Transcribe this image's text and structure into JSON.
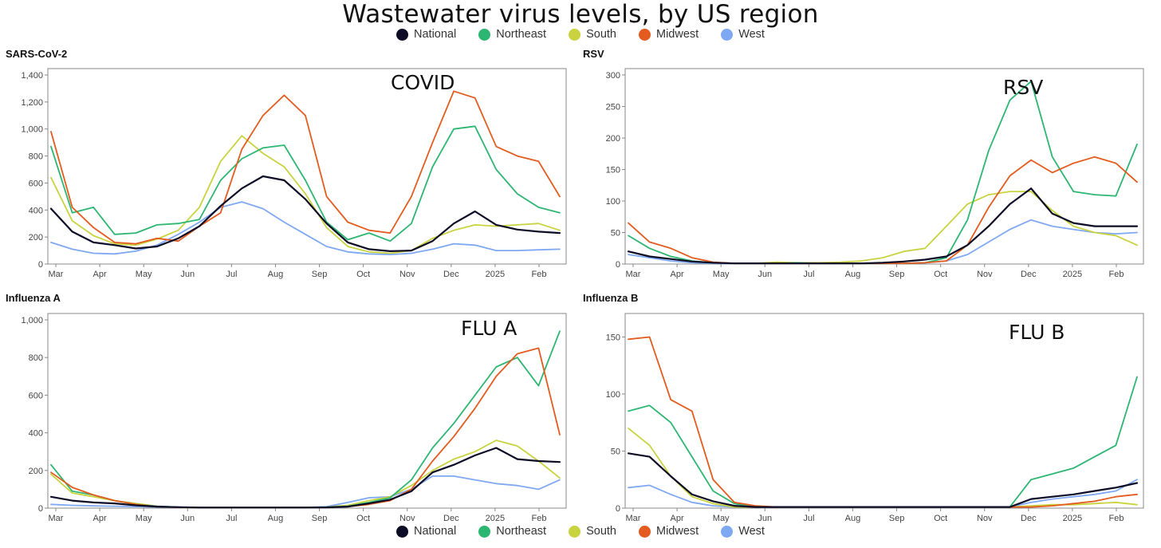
{
  "title": "Wastewater virus levels, by US region",
  "legend": [
    {
      "name": "National",
      "color": "#0d0c26"
    },
    {
      "name": "Northeast",
      "color": "#2db672"
    },
    {
      "name": "South",
      "color": "#c8d33f"
    },
    {
      "name": "Midwest",
      "color": "#e35b1e"
    },
    {
      "name": "West",
      "color": "#7fa8f2"
    }
  ],
  "chart_data": [
    {
      "type": "line",
      "title": "SARS-CoV-2",
      "annotation": "COVID",
      "x_tick_labels": [
        "Mar",
        "Apr",
        "May",
        "Jun",
        "Jul",
        "Aug",
        "Sep",
        "Oct",
        "Nov",
        "Dec",
        "2025",
        "Feb"
      ],
      "ylim": [
        0,
        1400
      ],
      "y_ticks": [
        0,
        200,
        400,
        600,
        800,
        1000,
        1200,
        1400
      ],
      "x": [
        0,
        0.5,
        1,
        1.5,
        2,
        2.5,
        3,
        3.5,
        4,
        4.5,
        5,
        5.5,
        6,
        6.5,
        7,
        7.5,
        8,
        8.5,
        9,
        9.5,
        10,
        10.5,
        11,
        11.5,
        12
      ],
      "series": [
        {
          "name": "National",
          "values": [
            410,
            240,
            160,
            140,
            115,
            130,
            190,
            280,
            430,
            560,
            650,
            620,
            480,
            300,
            160,
            110,
            95,
            100,
            170,
            300,
            390,
            290,
            255,
            240,
            230
          ]
        },
        {
          "name": "Northeast",
          "values": [
            870,
            380,
            420,
            220,
            230,
            290,
            300,
            330,
            620,
            780,
            860,
            880,
            620,
            310,
            180,
            230,
            170,
            300,
            720,
            1000,
            1020,
            700,
            520,
            420,
            380
          ]
        },
        {
          "name": "South",
          "values": [
            640,
            320,
            210,
            150,
            140,
            185,
            250,
            420,
            760,
            950,
            820,
            720,
            520,
            270,
            130,
            90,
            80,
            100,
            190,
            250,
            290,
            280,
            290,
            300,
            250
          ]
        },
        {
          "name": "Midwest",
          "values": [
            980,
            420,
            270,
            160,
            150,
            190,
            170,
            280,
            380,
            850,
            1100,
            1250,
            1100,
            500,
            310,
            250,
            230,
            500,
            900,
            1280,
            1230,
            870,
            800,
            760,
            500
          ]
        },
        {
          "name": "West",
          "values": [
            160,
            110,
            80,
            75,
            95,
            140,
            220,
            310,
            420,
            460,
            410,
            310,
            220,
            130,
            90,
            75,
            70,
            80,
            110,
            150,
            140,
            100,
            100,
            105,
            110
          ]
        }
      ]
    },
    {
      "type": "line",
      "title": "RSV",
      "annotation": "RSV",
      "x_tick_labels": [
        "Mar",
        "Apr",
        "May",
        "Jun",
        "Jul",
        "Aug",
        "Sep",
        "Oct",
        "Nov",
        "Dec",
        "2025",
        "Feb"
      ],
      "ylim": [
        0,
        300
      ],
      "y_ticks": [
        0,
        50,
        100,
        150,
        200,
        250,
        300
      ],
      "x": [
        0,
        0.5,
        1,
        1.5,
        2,
        2.5,
        3,
        3.5,
        4,
        4.5,
        5,
        5.5,
        6,
        6.5,
        7,
        7.5,
        8,
        8.5,
        9,
        9.5,
        10,
        10.5,
        11,
        11.5,
        12
      ],
      "series": [
        {
          "name": "National",
          "values": [
            20,
            12,
            8,
            4,
            2,
            1,
            1,
            1,
            1,
            1,
            1,
            1,
            2,
            4,
            7,
            12,
            30,
            60,
            95,
            120,
            80,
            65,
            60,
            60,
            60
          ]
        },
        {
          "name": "Northeast",
          "values": [
            45,
            25,
            12,
            5,
            2,
            1,
            1,
            1,
            2,
            1,
            1,
            1,
            1,
            1,
            2,
            10,
            70,
            180,
            260,
            290,
            170,
            115,
            110,
            108,
            190
          ]
        },
        {
          "name": "South",
          "values": [
            20,
            12,
            8,
            4,
            2,
            1,
            1,
            3,
            2,
            2,
            3,
            5,
            10,
            20,
            25,
            60,
            95,
            110,
            115,
            115,
            85,
            60,
            50,
            45,
            30
          ]
        },
        {
          "name": "Midwest",
          "values": [
            65,
            35,
            25,
            10,
            3,
            1,
            1,
            1,
            1,
            1,
            1,
            1,
            1,
            1,
            2,
            5,
            30,
            90,
            140,
            165,
            145,
            160,
            170,
            160,
            130
          ]
        },
        {
          "name": "West",
          "values": [
            15,
            10,
            5,
            2,
            1,
            1,
            1,
            1,
            1,
            1,
            1,
            1,
            1,
            1,
            2,
            5,
            15,
            35,
            55,
            70,
            60,
            55,
            50,
            48,
            50
          ]
        }
      ]
    },
    {
      "type": "line",
      "title": "Influenza A",
      "annotation": "FLU A",
      "x_tick_labels": [
        "Mar",
        "Apr",
        "May",
        "Jun",
        "Jul",
        "Aug",
        "Sep",
        "Oct",
        "Nov",
        "Dec",
        "2025",
        "Feb"
      ],
      "ylim": [
        0,
        1000
      ],
      "y_ticks": [
        0,
        200,
        400,
        600,
        800,
        1000
      ],
      "x": [
        0,
        0.5,
        1,
        1.5,
        2,
        2.5,
        3,
        3.5,
        4,
        4.5,
        5,
        5.5,
        6,
        6.5,
        7,
        7.5,
        8,
        8.5,
        9,
        9.5,
        10,
        10.5,
        11,
        11.5,
        12
      ],
      "series": [
        {
          "name": "National",
          "values": [
            60,
            40,
            30,
            25,
            15,
            8,
            5,
            3,
            3,
            3,
            3,
            3,
            3,
            4,
            8,
            25,
            45,
            90,
            190,
            230,
            280,
            320,
            260,
            250,
            245
          ]
        },
        {
          "name": "Northeast",
          "values": [
            230,
            90,
            70,
            40,
            20,
            10,
            5,
            3,
            3,
            3,
            3,
            3,
            4,
            5,
            10,
            30,
            55,
            150,
            320,
            450,
            600,
            750,
            800,
            650,
            940
          ]
        },
        {
          "name": "South",
          "values": [
            180,
            80,
            60,
            40,
            25,
            10,
            5,
            3,
            3,
            3,
            3,
            3,
            3,
            5,
            15,
            40,
            60,
            120,
            200,
            260,
            300,
            360,
            330,
            250,
            160
          ]
        },
        {
          "name": "Midwest",
          "values": [
            190,
            110,
            70,
            40,
            20,
            8,
            4,
            3,
            3,
            3,
            3,
            3,
            3,
            4,
            8,
            20,
            40,
            100,
            250,
            380,
            530,
            700,
            820,
            850,
            390
          ]
        },
        {
          "name": "West",
          "values": [
            20,
            15,
            12,
            10,
            8,
            6,
            5,
            4,
            4,
            4,
            4,
            4,
            4,
            8,
            30,
            55,
            60,
            100,
            170,
            170,
            150,
            130,
            120,
            100,
            150
          ]
        }
      ]
    },
    {
      "type": "line",
      "title": "Influenza B",
      "annotation": "FLU B",
      "x_tick_labels": [
        "Mar",
        "Apr",
        "May",
        "Jun",
        "Jul",
        "Aug",
        "Sep",
        "Oct",
        "Nov",
        "Dec",
        "2025",
        "Feb"
      ],
      "ylim": [
        0,
        165
      ],
      "y_ticks": [
        0,
        50,
        100,
        150
      ],
      "x": [
        0,
        0.5,
        1,
        1.5,
        2,
        2.5,
        3,
        3.5,
        4,
        4.5,
        5,
        5.5,
        6,
        6.5,
        7,
        7.5,
        8,
        8.5,
        9,
        9.5,
        10,
        10.5,
        11,
        11.5,
        12
      ],
      "series": [
        {
          "name": "National",
          "values": [
            48,
            45,
            28,
            12,
            6,
            2,
            1,
            1,
            1,
            1,
            1,
            1,
            1,
            1,
            1,
            1,
            1,
            1,
            1,
            8,
            10,
            12,
            15,
            18,
            22
          ]
        },
        {
          "name": "Northeast",
          "values": [
            85,
            90,
            75,
            45,
            15,
            4,
            1,
            1,
            1,
            1,
            1,
            1,
            1,
            1,
            1,
            1,
            1,
            1,
            1,
            25,
            30,
            35,
            45,
            55,
            115
          ]
        },
        {
          "name": "South",
          "values": [
            70,
            55,
            28,
            10,
            4,
            1,
            1,
            1,
            1,
            1,
            1,
            1,
            1,
            1,
            1,
            1,
            1,
            1,
            1,
            2,
            3,
            3,
            4,
            5,
            3
          ]
        },
        {
          "name": "Midwest",
          "values": [
            148,
            150,
            95,
            85,
            25,
            5,
            2,
            1,
            1,
            1,
            1,
            1,
            1,
            1,
            1,
            1,
            1,
            1,
            1,
            1,
            2,
            4,
            6,
            10,
            12
          ]
        },
        {
          "name": "West",
          "values": [
            18,
            20,
            12,
            5,
            2,
            1,
            1,
            1,
            1,
            1,
            1,
            1,
            1,
            1,
            1,
            1,
            1,
            1,
            1,
            5,
            8,
            10,
            12,
            15,
            25
          ]
        }
      ]
    }
  ]
}
